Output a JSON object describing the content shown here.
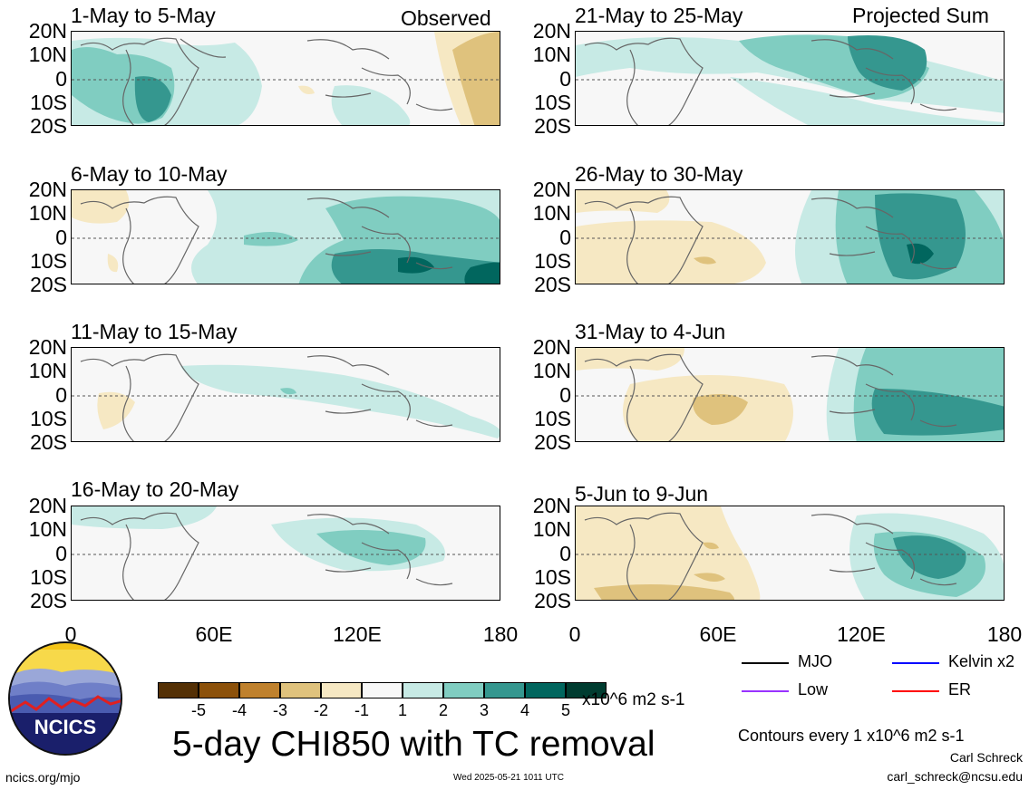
{
  "panels": [
    {
      "title": "1-May to 5-May",
      "tag": "Observed"
    },
    {
      "title": "21-May to 25-May",
      "tag": "Projected Sum"
    },
    {
      "title": "6-May to 10-May",
      "tag": ""
    },
    {
      "title": "26-May to 30-May",
      "tag": ""
    },
    {
      "title": "11-May to 15-May",
      "tag": ""
    },
    {
      "title": "31-May to 4-Jun",
      "tag": ""
    },
    {
      "title": "16-May to 20-May",
      "tag": ""
    },
    {
      "title": "5-Jun to 9-Jun",
      "tag": ""
    }
  ],
  "lat_labels": [
    "20N",
    "10N",
    "0",
    "10S",
    "20S"
  ],
  "lon_labels": [
    "0",
    "60E",
    "120E",
    "180"
  ],
  "colorbar": {
    "colors": [
      "#543005",
      "#8c510a",
      "#bf812d",
      "#dfc27d",
      "#f6e8c3",
      "#f7f7f7",
      "#c7eae5",
      "#80cdc1",
      "#35978f",
      "#01665e",
      "#003c30"
    ],
    "labels": [
      "-5",
      "-4",
      "-3",
      "-2",
      "-1",
      "1",
      "2",
      "3",
      "4",
      "5"
    ],
    "units": "x10^6 m2 s-1"
  },
  "legend": [
    {
      "label": "MJO",
      "color": "#000000"
    },
    {
      "label": "Kelvin x2",
      "color": "#0000ff"
    },
    {
      "label": "Low",
      "color": "#9933ff"
    },
    {
      "label": "ER",
      "color": "#ff0000"
    }
  ],
  "main_title": "5-day CHI850 with TC removal",
  "contour_note": "Contours every 1 x10^6 m2 s-1",
  "author_name": "Carl Schreck",
  "author_email": "carl_schreck@ncsu.edu",
  "site": "ncics.org/mjo",
  "timestamp": "Wed 2025-05-21 1011 UTC",
  "logo_text": "NCICS"
}
